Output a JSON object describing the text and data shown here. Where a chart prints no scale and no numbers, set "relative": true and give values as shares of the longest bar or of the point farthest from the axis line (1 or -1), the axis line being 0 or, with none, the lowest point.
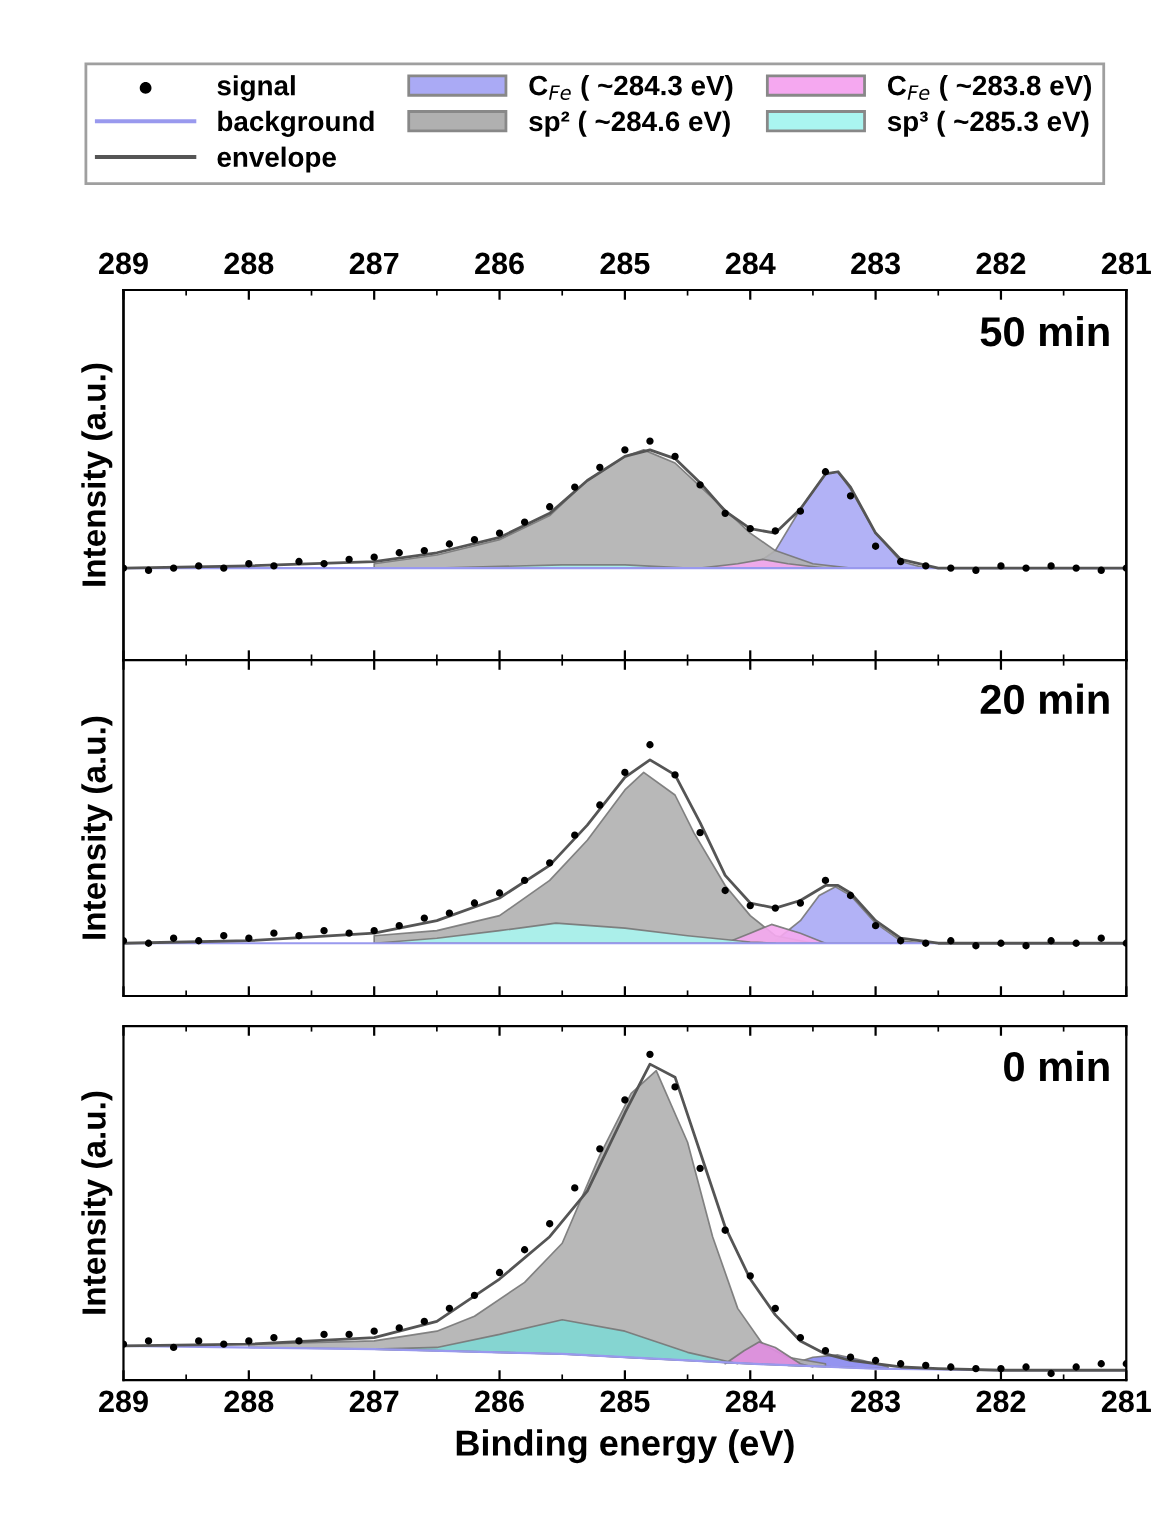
{
  "chart_data": [
    {
      "type": "area",
      "relative": true,
      "ylabel": "Intensity (a.u.)",
      "annotations": [
        "50 min"
      ],
      "legend": "top",
      "tick_labels": false,
      "grid": false,
      "xlim": [
        289,
        281
      ],
      "x2lim": [
        289,
        281
      ],
      "x2ticks": [
        289,
        288,
        287,
        286,
        285,
        284,
        283,
        282,
        281
      ],
      "series": [
        {
          "name": "signal",
          "type": "scatter",
          "color": "#000000",
          "x": [
            289,
            288.8,
            288.6,
            288.4,
            288.2,
            288,
            287.8,
            287.6,
            287.4,
            287.2,
            287,
            286.8,
            286.6,
            286.4,
            286.2,
            286,
            285.8,
            285.6,
            285.4,
            285.2,
            285,
            284.8,
            284.6,
            284.4,
            284.2,
            284,
            283.8,
            283.6,
            283.4,
            283.2,
            283,
            282.8,
            282.6,
            282.4,
            282.2,
            282,
            281.8,
            281.6,
            281.4,
            281.2,
            281
          ],
          "values": [
            0.42,
            0.41,
            0.42,
            0.43,
            0.42,
            0.44,
            0.43,
            0.45,
            0.44,
            0.46,
            0.47,
            0.49,
            0.5,
            0.53,
            0.55,
            0.58,
            0.63,
            0.7,
            0.79,
            0.88,
            0.96,
            1.0,
            0.93,
            0.8,
            0.67,
            0.6,
            0.59,
            0.68,
            0.86,
            0.75,
            0.52,
            0.45,
            0.43,
            0.42,
            0.41,
            0.43,
            0.42,
            0.43,
            0.42,
            0.41,
            0.42
          ]
        },
        {
          "name": "background",
          "type": "line",
          "color": "#9999ee",
          "x": [
            289,
            281
          ],
          "values": [
            0.42,
            0.42
          ]
        },
        {
          "name": "envelope",
          "type": "line",
          "color": "#555555",
          "x": [
            289,
            288,
            287,
            286.5,
            286,
            285.6,
            285.3,
            285,
            284.8,
            284.6,
            284.4,
            284.2,
            284,
            283.8,
            283.6,
            283.4,
            283.3,
            283.2,
            283,
            282.8,
            282.5,
            282,
            281
          ],
          "values": [
            0.42,
            0.43,
            0.45,
            0.49,
            0.56,
            0.67,
            0.82,
            0.93,
            0.96,
            0.92,
            0.81,
            0.68,
            0.6,
            0.58,
            0.69,
            0.85,
            0.86,
            0.79,
            0.58,
            0.46,
            0.42,
            0.42,
            0.42
          ]
        },
        {
          "name": "C$_{Fe}$ ( ~284.3 eV)",
          "color": "#aaaaf5",
          "x": [
            284,
            283.8,
            283.6,
            283.4,
            283.3,
            283.2,
            283,
            282.8,
            282.6
          ],
          "values": [
            0.42,
            0.5,
            0.69,
            0.85,
            0.86,
            0.78,
            0.58,
            0.45,
            0.42
          ]
        },
        {
          "name": "sp² ( ~284.6 eV)",
          "color": "#b0b0b0",
          "x": [
            287,
            286.5,
            286,
            285.6,
            285.3,
            285,
            284.85,
            284.6,
            284.3,
            284,
            283.8,
            283.5,
            283.2
          ],
          "values": [
            0.44,
            0.48,
            0.55,
            0.66,
            0.82,
            0.93,
            0.96,
            0.9,
            0.74,
            0.58,
            0.5,
            0.44,
            0.42
          ]
        },
        {
          "name": "C$_{Fe}$ ( ~283.8 eV)",
          "color": "#f5a8f0",
          "x": [
            284.4,
            284.1,
            283.9,
            283.7,
            283.4
          ],
          "values": [
            0.42,
            0.44,
            0.46,
            0.44,
            0.42
          ]
        },
        {
          "name": "sp³ ( ~285.3 eV)",
          "color": "#aaf5f0",
          "x": [
            286.5,
            285.5,
            285,
            284.5
          ],
          "values": [
            0.42,
            0.435,
            0.435,
            0.42
          ]
        }
      ]
    },
    {
      "type": "area",
      "relative": true,
      "ylabel": "Intensity (a.u.)",
      "annotations": [
        "20 min"
      ],
      "tick_labels": false,
      "grid": false,
      "xlim": [
        289,
        281
      ],
      "series": [
        {
          "type": "scatter",
          "color": "#000000",
          "x": [
            289,
            288.8,
            288.6,
            288.4,
            288.2,
            288,
            287.8,
            287.6,
            287.4,
            287.2,
            287,
            286.8,
            286.6,
            286.4,
            286.2,
            286,
            285.8,
            285.6,
            285.4,
            285.2,
            285,
            284.8,
            284.6,
            284.4,
            284.2,
            284,
            283.8,
            283.6,
            283.4,
            283.2,
            283,
            282.8,
            282.6,
            282.4,
            282.2,
            282,
            281.8,
            281.6,
            281.4,
            281.2,
            281
          ],
          "values": [
            0.22,
            0.21,
            0.23,
            0.22,
            0.24,
            0.23,
            0.25,
            0.24,
            0.26,
            0.25,
            0.26,
            0.28,
            0.31,
            0.33,
            0.37,
            0.41,
            0.46,
            0.53,
            0.64,
            0.76,
            0.89,
            1.0,
            0.88,
            0.65,
            0.42,
            0.36,
            0.35,
            0.37,
            0.46,
            0.4,
            0.28,
            0.22,
            0.21,
            0.22,
            0.2,
            0.21,
            0.2,
            0.22,
            0.21,
            0.23,
            0.21
          ]
        },
        {
          "type": "line",
          "color": "#9999ee",
          "x": [
            289,
            281
          ],
          "values": [
            0.21,
            0.21
          ]
        },
        {
          "type": "line",
          "color": "#555555",
          "x": [
            289,
            288,
            287,
            286.5,
            286,
            285.6,
            285.3,
            285,
            284.8,
            284.6,
            284.4,
            284.2,
            284,
            283.8,
            283.6,
            283.4,
            283.3,
            283.2,
            283,
            282.8,
            282.5,
            282,
            281
          ],
          "values": [
            0.21,
            0.22,
            0.25,
            0.3,
            0.39,
            0.52,
            0.68,
            0.87,
            0.94,
            0.88,
            0.69,
            0.48,
            0.37,
            0.35,
            0.38,
            0.44,
            0.44,
            0.41,
            0.3,
            0.23,
            0.21,
            0.21,
            0.21
          ]
        },
        {
          "color": "#aaaaf5",
          "x": [
            283.8,
            283.6,
            283.45,
            283.32,
            283.2,
            283,
            282.8,
            282.6
          ],
          "values": [
            0.22,
            0.3,
            0.4,
            0.435,
            0.4,
            0.29,
            0.22,
            0.21
          ]
        },
        {
          "color": "#b0b0b0",
          "x": [
            287,
            286.5,
            286,
            285.6,
            285.3,
            285,
            284.85,
            284.6,
            284.45,
            284.2,
            284,
            283.8,
            283.5
          ],
          "values": [
            0.24,
            0.26,
            0.32,
            0.46,
            0.62,
            0.82,
            0.89,
            0.8,
            0.65,
            0.44,
            0.32,
            0.24,
            0.21
          ]
        },
        {
          "color": "#f5a8f0",
          "x": [
            284.2,
            284,
            283.83,
            283.6,
            283.4
          ],
          "values": [
            0.21,
            0.25,
            0.285,
            0.25,
            0.21
          ]
        },
        {
          "color": "#aaf5f0",
          "x": [
            287,
            286.5,
            286,
            285.55,
            285,
            284.5,
            284,
            283.8
          ],
          "values": [
            0.21,
            0.23,
            0.26,
            0.29,
            0.27,
            0.24,
            0.215,
            0.21
          ]
        }
      ]
    },
    {
      "type": "area",
      "relative": true,
      "ylabel": "Intensity (a.u.)",
      "xlabel": "Binding energy (eV)",
      "annotations": [
        "0 min"
      ],
      "tick_labels": "x",
      "grid": false,
      "xlim": [
        289,
        281
      ],
      "xticks": [
        289,
        288,
        287,
        286,
        285,
        284,
        283,
        282,
        281
      ],
      "series": [
        {
          "type": "scatter",
          "color": "#000000",
          "x": [
            289,
            288.8,
            288.6,
            288.4,
            288.2,
            288,
            287.8,
            287.6,
            287.4,
            287.2,
            287,
            286.8,
            286.6,
            286.4,
            286.2,
            286,
            285.8,
            285.6,
            285.4,
            285.2,
            285,
            284.8,
            284.6,
            284.4,
            284.2,
            284,
            283.8,
            283.6,
            283.4,
            283.2,
            283,
            282.8,
            282.6,
            282.4,
            282.2,
            282,
            281.8,
            281.6,
            281.4,
            281.2,
            281
          ],
          "values": [
            0.11,
            0.12,
            0.1,
            0.12,
            0.11,
            0.12,
            0.13,
            0.12,
            0.14,
            0.14,
            0.15,
            0.16,
            0.18,
            0.22,
            0.26,
            0.33,
            0.4,
            0.48,
            0.59,
            0.71,
            0.86,
            1.0,
            0.9,
            0.65,
            0.46,
            0.32,
            0.22,
            0.13,
            0.09,
            0.07,
            0.06,
            0.05,
            0.045,
            0.04,
            0.035,
            0.035,
            0.04,
            0.02,
            0.04,
            0.05,
            0.05
          ]
        },
        {
          "type": "line",
          "color": "#9999ee",
          "x": [
            289,
            287,
            286,
            285.5,
            285,
            284.5,
            284,
            283,
            282,
            281
          ],
          "values": [
            0.105,
            0.095,
            0.085,
            0.08,
            0.07,
            0.06,
            0.05,
            0.035,
            0.03,
            0.03
          ]
        },
        {
          "type": "line",
          "color": "#555555",
          "x": [
            289,
            288,
            287,
            286.5,
            286,
            285.6,
            285.3,
            285,
            284.8,
            284.6,
            284.4,
            284.2,
            284,
            283.8,
            283.6,
            283.4,
            283.3,
            283.2,
            283,
            282.8,
            282.5,
            282,
            281
          ],
          "values": [
            0.105,
            0.11,
            0.13,
            0.18,
            0.31,
            0.44,
            0.58,
            0.82,
            0.97,
            0.93,
            0.7,
            0.47,
            0.31,
            0.2,
            0.12,
            0.08,
            0.07,
            0.06,
            0.05,
            0.04,
            0.035,
            0.03,
            0.03
          ]
        },
        {
          "color": "#8888ee",
          "x": [
            283.7,
            283.5,
            283.3,
            283.1,
            282.9
          ],
          "values": [
            0.045,
            0.07,
            0.077,
            0.06,
            0.04
          ]
        },
        {
          "color": "#b0b0b0",
          "x": [
            288,
            287,
            286.5,
            286.2,
            285.8,
            285.5,
            285.2,
            284.95,
            284.75,
            284.5,
            284.3,
            284.1,
            283.9,
            283.7,
            283.4
          ],
          "values": [
            0.11,
            0.12,
            0.15,
            0.196,
            0.3,
            0.42,
            0.69,
            0.88,
            0.95,
            0.73,
            0.44,
            0.22,
            0.11,
            0.07,
            0.05
          ]
        },
        {
          "color": "#e08ee0",
          "x": [
            284.2,
            284.05,
            283.93,
            283.8,
            283.6,
            283.5
          ],
          "values": [
            0.05,
            0.09,
            0.117,
            0.1,
            0.05,
            0.04
          ]
        },
        {
          "color": "#7fd8d4",
          "x": [
            287,
            286.5,
            286,
            285.5,
            285,
            284.5,
            284.1
          ],
          "values": [
            0.095,
            0.1,
            0.14,
            0.185,
            0.15,
            0.085,
            0.05
          ]
        }
      ]
    }
  ]
}
